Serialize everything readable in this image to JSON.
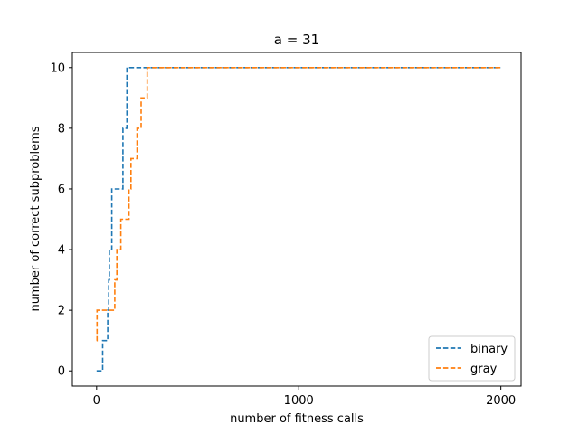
{
  "chart_data": {
    "type": "line",
    "title": "a = 31",
    "xlabel": "number of fitness calls",
    "ylabel": "number of correct subproblems",
    "xlim": [
      -120,
      2100
    ],
    "ylim": [
      -0.5,
      10.5
    ],
    "xticks": [
      0,
      1000,
      2000
    ],
    "yticks": [
      0,
      2,
      4,
      6,
      8,
      10
    ],
    "legend_position": "bottom-right",
    "line_style": "dashed",
    "step": "post",
    "series": [
      {
        "name": "binary",
        "color": "#1f77b4",
        "points": [
          [
            0,
            0
          ],
          [
            30,
            0
          ],
          [
            30,
            1
          ],
          [
            55,
            1
          ],
          [
            55,
            2
          ],
          [
            60,
            2
          ],
          [
            60,
            3
          ],
          [
            63,
            3
          ],
          [
            63,
            4
          ],
          [
            75,
            4
          ],
          [
            75,
            6
          ],
          [
            130,
            6
          ],
          [
            130,
            8
          ],
          [
            150,
            8
          ],
          [
            150,
            10
          ],
          [
            2000,
            10
          ]
        ]
      },
      {
        "name": "gray",
        "color": "#ff7f0e",
        "points": [
          [
            0,
            1
          ],
          [
            2,
            1
          ],
          [
            2,
            2
          ],
          [
            90,
            2
          ],
          [
            90,
            3
          ],
          [
            100,
            3
          ],
          [
            100,
            4
          ],
          [
            120,
            4
          ],
          [
            120,
            5
          ],
          [
            160,
            5
          ],
          [
            160,
            6
          ],
          [
            170,
            6
          ],
          [
            170,
            7
          ],
          [
            200,
            7
          ],
          [
            200,
            8
          ],
          [
            220,
            8
          ],
          [
            220,
            9
          ],
          [
            250,
            9
          ],
          [
            250,
            10
          ],
          [
            2000,
            10
          ]
        ]
      }
    ]
  }
}
